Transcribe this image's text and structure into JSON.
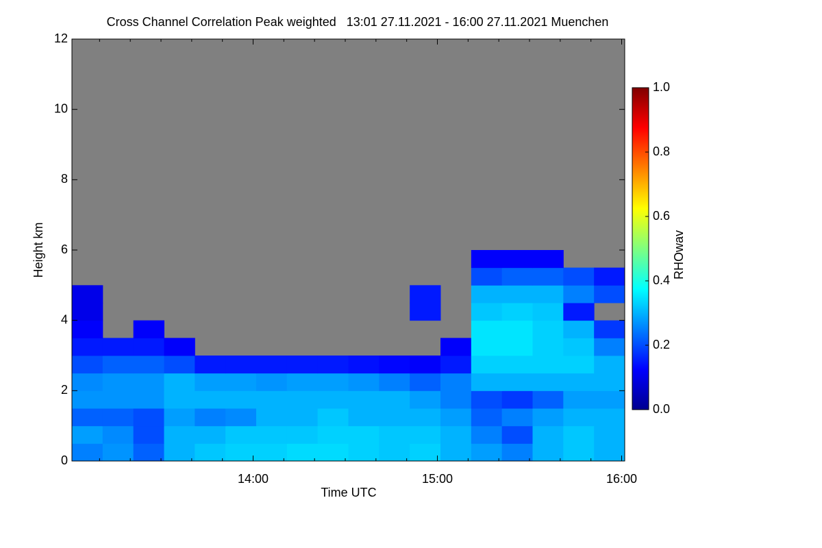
{
  "chart_data": {
    "type": "heatmap",
    "title": "Cross Channel Correlation Peak weighted   13:01 27.11.2021 - 16:00 27.11.2021 Muenchen",
    "x_label": "Time UTC",
    "y_label": "Height km",
    "colorbar_label": "RHOwav",
    "xlim": [
      781,
      961
    ],
    "ylim": [
      0,
      12
    ],
    "xticks": [
      {
        "value": 840,
        "label": "14:00"
      },
      {
        "value": 900,
        "label": "15:00"
      },
      {
        "value": 960,
        "label": "16:00"
      }
    ],
    "xminorticks": [
      790,
      800,
      810,
      820,
      830,
      850,
      860,
      870,
      880,
      890,
      910,
      920,
      930,
      940,
      950
    ],
    "yticks": [
      0,
      2,
      4,
      6,
      8,
      10,
      12
    ],
    "x": [
      781,
      791,
      801,
      811,
      821,
      831,
      841,
      851,
      861,
      871,
      881,
      891,
      901,
      911,
      921,
      931,
      941,
      951,
      961
    ],
    "y": [
      0,
      0.5,
      1,
      1.5,
      2,
      2.5,
      3,
      3.5,
      4,
      4.5,
      5,
      5.5,
      6
    ],
    "z": [
      [
        0.25,
        0.27,
        0.22,
        0.3,
        0.32,
        0.33,
        0.33,
        0.34,
        0.34,
        0.33,
        0.32,
        0.33,
        0.3,
        0.28,
        0.25,
        0.3,
        0.32,
        0.3
      ],
      [
        0.28,
        0.26,
        0.2,
        0.3,
        0.3,
        0.32,
        0.32,
        0.32,
        0.33,
        0.33,
        0.32,
        0.32,
        0.3,
        0.25,
        0.2,
        0.3,
        0.32,
        0.3
      ],
      [
        0.22,
        0.22,
        0.2,
        0.28,
        0.25,
        0.26,
        0.3,
        0.3,
        0.32,
        0.3,
        0.3,
        0.3,
        0.28,
        0.22,
        0.25,
        0.28,
        0.3,
        0.3
      ],
      [
        0.27,
        0.27,
        0.27,
        0.3,
        0.3,
        0.3,
        0.3,
        0.3,
        0.3,
        0.3,
        0.3,
        0.28,
        0.25,
        0.2,
        0.18,
        0.22,
        0.28,
        0.28
      ],
      [
        0.26,
        0.27,
        0.27,
        0.3,
        0.28,
        0.28,
        0.27,
        0.28,
        0.28,
        0.27,
        0.25,
        0.22,
        0.25,
        0.3,
        0.3,
        0.3,
        0.3,
        0.3
      ],
      [
        0.2,
        0.22,
        0.22,
        0.2,
        0.15,
        0.15,
        0.15,
        0.15,
        0.15,
        0.14,
        0.13,
        0.12,
        0.15,
        0.33,
        0.33,
        0.33,
        0.33,
        0.3
      ],
      [
        0.15,
        0.15,
        0.15,
        0.12,
        null,
        null,
        null,
        null,
        null,
        null,
        null,
        null,
        0.12,
        0.35,
        0.35,
        0.33,
        0.32,
        0.25
      ],
      [
        0.12,
        null,
        0.12,
        null,
        null,
        null,
        null,
        null,
        null,
        null,
        null,
        null,
        null,
        0.35,
        0.35,
        0.33,
        0.3,
        0.18
      ],
      [
        0.1,
        null,
        null,
        null,
        null,
        null,
        null,
        null,
        null,
        null,
        null,
        0.15,
        null,
        0.32,
        0.33,
        0.32,
        0.15,
        null
      ],
      [
        0.1,
        null,
        null,
        null,
        null,
        null,
        null,
        null,
        null,
        null,
        null,
        0.15,
        null,
        0.3,
        0.3,
        0.3,
        0.25,
        0.2
      ],
      [
        null,
        null,
        null,
        null,
        null,
        null,
        null,
        null,
        null,
        null,
        null,
        null,
        null,
        0.2,
        0.22,
        0.22,
        0.2,
        0.15
      ],
      [
        null,
        null,
        null,
        null,
        null,
        null,
        null,
        null,
        null,
        null,
        null,
        null,
        null,
        0.12,
        0.12,
        0.12,
        null,
        null
      ]
    ],
    "missing_color": "#808080",
    "colormap": {
      "stops": [
        0,
        0.125,
        0.375,
        0.625,
        0.875,
        1
      ],
      "colors": [
        "#00008f",
        "#0000ff",
        "#00ffff",
        "#ffff00",
        "#ff0000",
        "#800000"
      ]
    },
    "clim": [
      0,
      1
    ],
    "cticks": [
      {
        "value": 0,
        "label": "0.0"
      },
      0.2,
      0.4,
      0.6,
      0.8,
      {
        "value": 1,
        "label": "1.0"
      }
    ]
  }
}
